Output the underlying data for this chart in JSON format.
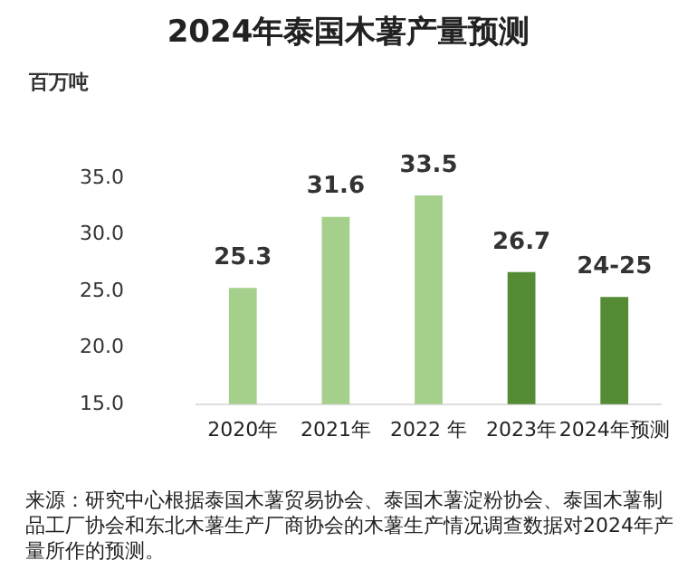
{
  "chart_data": {
    "type": "bar",
    "title": "2024年泰国木薯产量预测",
    "ylabel": "百万吨",
    "categories": [
      "2020年",
      "2021年",
      "2022 年",
      "2023年",
      "2024年预测"
    ],
    "values": [
      25.3,
      31.6,
      33.5,
      26.7,
      24.5
    ],
    "colors": [
      "#a5d08b",
      "#a5d08b",
      "#a5d08b",
      "#558b35",
      "#558b35"
    ],
    "value_labels": [
      "25.3",
      "31.6",
      "33.5",
      "26.7",
      "24-25"
    ],
    "ylim": [
      15,
      35
    ],
    "yticks": [
      {
        "value": 15,
        "label": "15.0"
      },
      {
        "value": 20,
        "label": "20.0"
      },
      {
        "value": 25,
        "label": "25.0"
      },
      {
        "value": 30,
        "label": "30.0"
      },
      {
        "value": 35,
        "label": "35.0"
      }
    ],
    "grid": false,
    "legend": false,
    "annotations": [
      "来源：研究中心根据泰国木薯贸易协会、泰国木薯淀粉协会、泰国木薯制品工厂协会和东北木薯生产厂商协会的木薯生产情况调查数据对2024年产量所作的预测。"
    ]
  }
}
